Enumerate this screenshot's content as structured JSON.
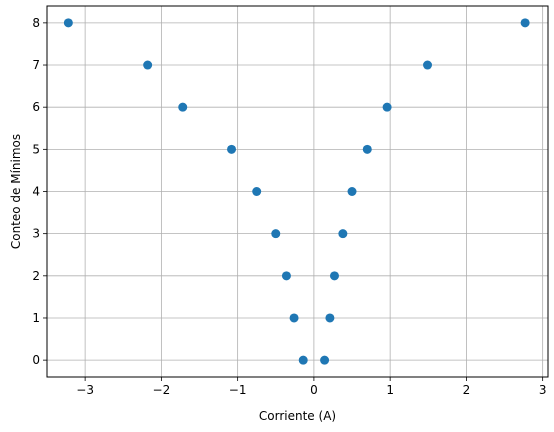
{
  "chart_data": {
    "type": "scatter",
    "title": "",
    "xlabel": "Corriente (A)",
    "ylabel": "Conteo de Mínimos",
    "xlim": [
      -3.5,
      3.07
    ],
    "ylim": [
      -0.4,
      8.4
    ],
    "xticks": [
      -3,
      -2,
      -1,
      0,
      1,
      2,
      3
    ],
    "yticks": [
      0,
      1,
      2,
      3,
      4,
      5,
      6,
      7,
      8
    ],
    "grid": true,
    "marker_color": "#1f77b4",
    "series": [
      {
        "points": [
          {
            "x": -3.22,
            "y": 8
          },
          {
            "x": -2.18,
            "y": 7
          },
          {
            "x": -1.72,
            "y": 6
          },
          {
            "x": -1.08,
            "y": 5
          },
          {
            "x": -0.75,
            "y": 4
          },
          {
            "x": -0.5,
            "y": 3
          },
          {
            "x": -0.36,
            "y": 2
          },
          {
            "x": -0.26,
            "y": 1
          },
          {
            "x": -0.14,
            "y": 0
          },
          {
            "x": 0.14,
            "y": 0
          },
          {
            "x": 0.21,
            "y": 1
          },
          {
            "x": 0.27,
            "y": 2
          },
          {
            "x": 0.38,
            "y": 3
          },
          {
            "x": 0.5,
            "y": 4
          },
          {
            "x": 0.7,
            "y": 5
          },
          {
            "x": 0.96,
            "y": 6
          },
          {
            "x": 1.49,
            "y": 7
          },
          {
            "x": 2.77,
            "y": 8
          }
        ]
      }
    ]
  }
}
